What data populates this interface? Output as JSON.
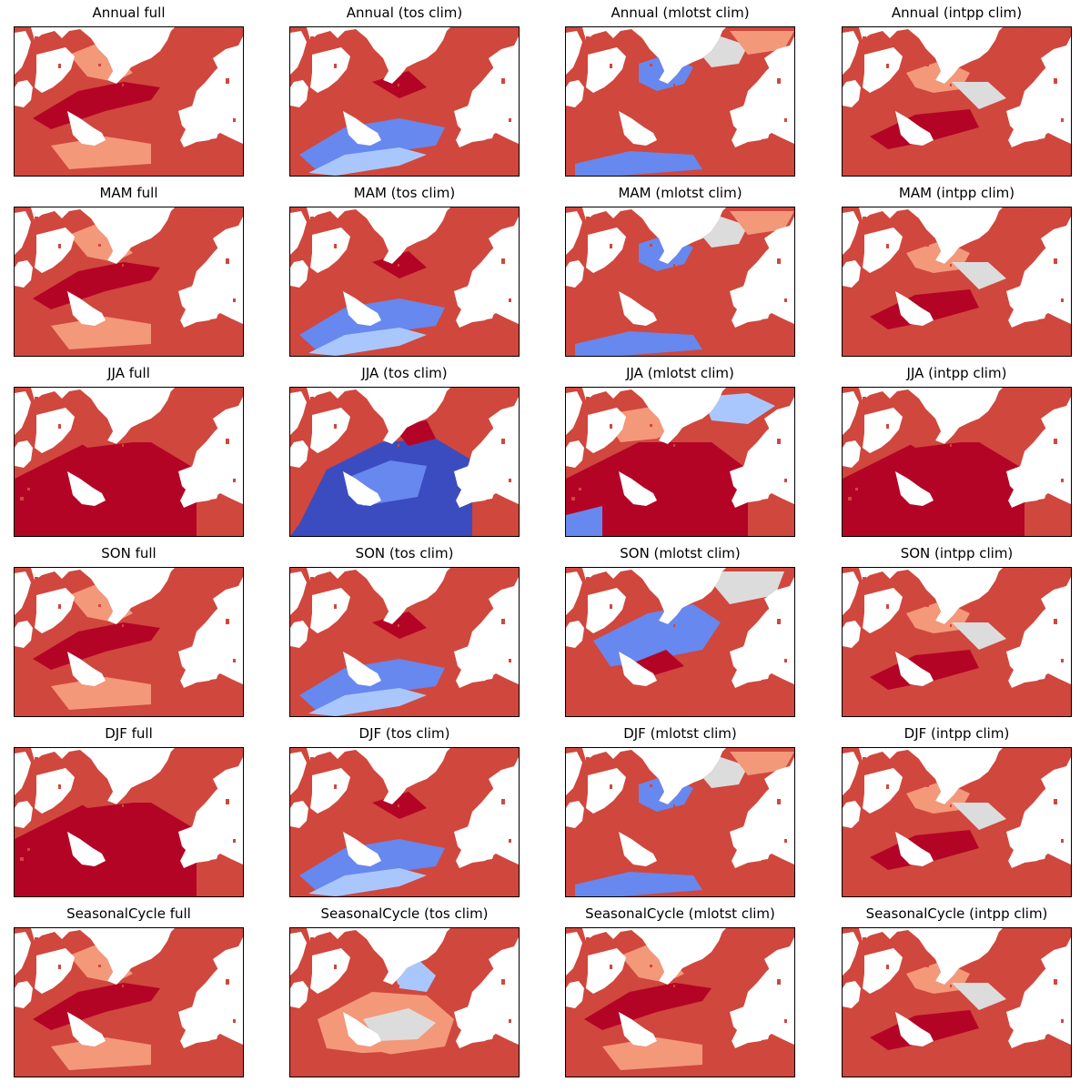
{
  "figure": {
    "colormap": "coolwarm",
    "colors": {
      "strong_red": "#b40426",
      "red": "#d0473d",
      "light_red": "#f4987a",
      "neutral": "#dddcdc",
      "light_blue": "#aac7fd",
      "blue": "#6788ee",
      "strong_blue": "#3b4cc0",
      "land": "#ffffff"
    },
    "rows": [
      "Annual",
      "MAM",
      "JJA",
      "SON",
      "DJF",
      "SeasonalCycle"
    ],
    "columns": [
      "full",
      "tos clim",
      "mlotst clim",
      "intpp clim"
    ]
  },
  "chart_data": [
    {
      "type": "heatmap",
      "title": "Annual full",
      "pattern": "full"
    },
    {
      "type": "heatmap",
      "title": "Annual (tos clim)",
      "pattern": "tos"
    },
    {
      "type": "heatmap",
      "title": "Annual (mlotst clim)",
      "pattern": "mlotst"
    },
    {
      "type": "heatmap",
      "title": "Annual (intpp clim)",
      "pattern": "intpp"
    },
    {
      "type": "heatmap",
      "title": "MAM full",
      "pattern": "full"
    },
    {
      "type": "heatmap",
      "title": "MAM (tos clim)",
      "pattern": "tos"
    },
    {
      "type": "heatmap",
      "title": "MAM (mlotst clim)",
      "pattern": "mlotst"
    },
    {
      "type": "heatmap",
      "title": "MAM (intpp clim)",
      "pattern": "intpp"
    },
    {
      "type": "heatmap",
      "title": "JJA full",
      "pattern": "full_strong"
    },
    {
      "type": "heatmap",
      "title": "JJA (tos clim)",
      "pattern": "tos_blue"
    },
    {
      "type": "heatmap",
      "title": "JJA (mlotst clim)",
      "pattern": "mlotst_red"
    },
    {
      "type": "heatmap",
      "title": "JJA (intpp clim)",
      "pattern": "full_strong"
    },
    {
      "type": "heatmap",
      "title": "SON full",
      "pattern": "full"
    },
    {
      "type": "heatmap",
      "title": "SON (tos clim)",
      "pattern": "tos"
    },
    {
      "type": "heatmap",
      "title": "SON (mlotst clim)",
      "pattern": "mlotst_blue"
    },
    {
      "type": "heatmap",
      "title": "SON (intpp clim)",
      "pattern": "intpp"
    },
    {
      "type": "heatmap",
      "title": "DJF full",
      "pattern": "full_strong"
    },
    {
      "type": "heatmap",
      "title": "DJF (tos clim)",
      "pattern": "tos"
    },
    {
      "type": "heatmap",
      "title": "DJF (mlotst clim)",
      "pattern": "mlotst"
    },
    {
      "type": "heatmap",
      "title": "DJF (intpp clim)",
      "pattern": "intpp"
    },
    {
      "type": "heatmap",
      "title": "SeasonalCycle full",
      "pattern": "full"
    },
    {
      "type": "heatmap",
      "title": "SeasonalCycle (tos clim)",
      "pattern": "tos_light"
    },
    {
      "type": "heatmap",
      "title": "SeasonalCycle (mlotst clim)",
      "pattern": "full"
    },
    {
      "type": "heatmap",
      "title": "SeasonalCycle (intpp clim)",
      "pattern": "intpp"
    }
  ]
}
